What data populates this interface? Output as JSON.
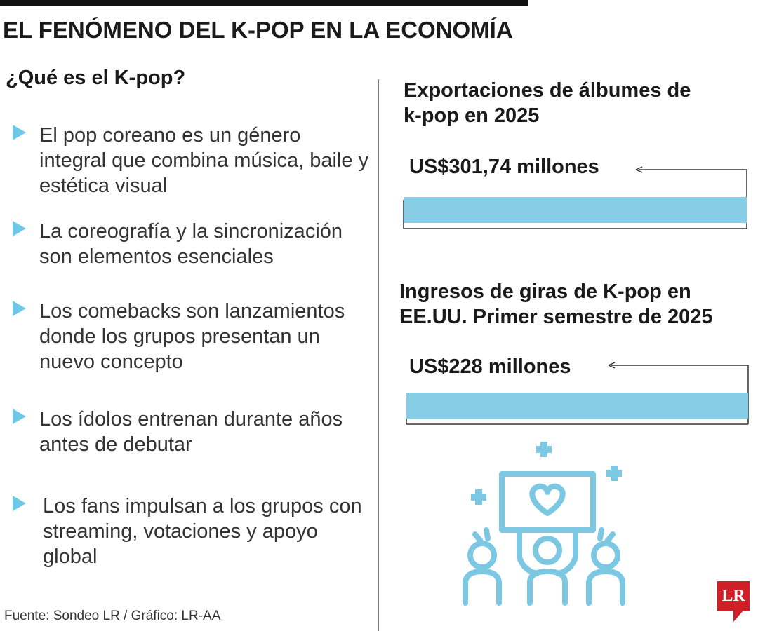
{
  "header": {
    "title": "EL FENÓMENO DEL K-POP EN LA ECONOMÍA"
  },
  "left": {
    "title": "¿Qué es el K-pop?",
    "bullets": [
      "El pop coreano es un género integral que combina música, baile y estética visual",
      "La coreografía y la sincronización son elementos esenciales",
      "Los comebacks son lanzamientos donde los grupos presentan un nuevo concepto",
      "Los ídolos entrenan durante años antes de debutar",
      "Los fans impulsan a los grupos con streaming, votaciones y apoyo global"
    ]
  },
  "chart_data": [
    {
      "type": "bar",
      "title": "Exportaciones de álbumes de k-pop en 2025",
      "categories": [
        "Exportaciones de álbumes"
      ],
      "values": [
        301.74
      ],
      "unit": "US$ millones",
      "label": "US$301,74 millones",
      "bar_color": "#87cde6"
    },
    {
      "type": "bar",
      "title": "Ingresos de giras de K-pop en EE.UU. Primer semestre de 2025",
      "categories": [
        "Ingresos de giras"
      ],
      "values": [
        228
      ],
      "unit": "US$ millones",
      "label": "US$228 millones",
      "bar_color": "#87cde6"
    }
  ],
  "illustration": {
    "icon": "fans-cheering-heart-sign-icon",
    "color": "#7cc8e3"
  },
  "footer": {
    "source": "Fuente: Sondeo LR / Gráfico: LR-AA"
  },
  "logo": {
    "text": "LR",
    "color": "#d11f28"
  }
}
